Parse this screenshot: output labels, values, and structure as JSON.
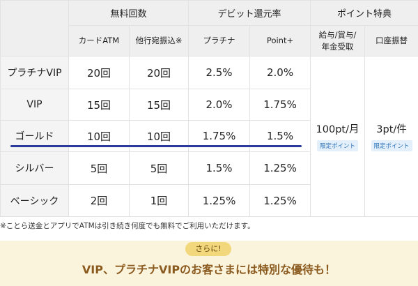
{
  "table": {
    "header_groups": [
      "無料回数",
      "デビット還元率",
      "ポイント特典"
    ],
    "subheaders": [
      "カードATM",
      "他行宛振込※",
      "プラチナ",
      "Point+",
      "給与/賞与/\n年金受取",
      "口座振替"
    ],
    "rows": [
      [
        "プラチナVIP",
        "20回",
        "20回",
        "2.5%",
        "2.0%"
      ],
      [
        "VIP",
        "15回",
        "15回",
        "2.0%",
        "1.75%"
      ],
      [
        "ゴールド",
        "10回",
        "10回",
        "1.75%",
        "1.5%"
      ],
      [
        "シルバー",
        "5回",
        "5回",
        "1.5%",
        "1.25%"
      ],
      [
        "ベーシック",
        "2回",
        "1回",
        "1.25%",
        "1.25%"
      ]
    ],
    "merged": [
      {
        "value": "100pt/月",
        "badge": "限定ポイント"
      },
      {
        "value": "3pt/件",
        "badge": "限定ポイント"
      }
    ]
  },
  "footnote": "※ことら送金とアプリでATMは引き続き何度でも無料でご利用いただけます。",
  "banner": {
    "pill": "さらに!",
    "text": "VIP、プラチナVIPのお客さまには特別な優待も！"
  }
}
